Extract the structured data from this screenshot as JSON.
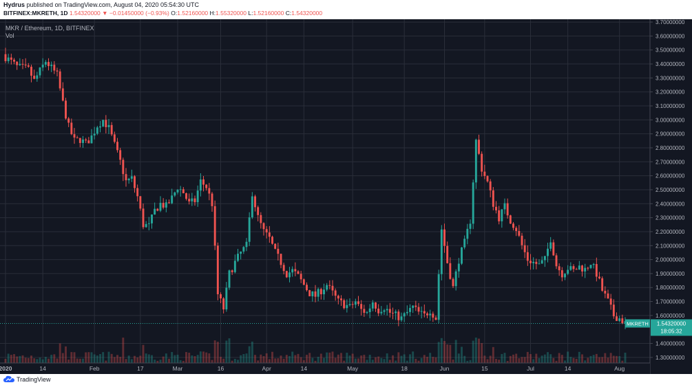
{
  "header": {
    "author": "Hydrus",
    "published_text": "published on TradingView.com, August 04, 2020 05:54:30 UTC",
    "symbol_line": "BITFINEX:MKRETH, 1D",
    "change": "1.54320000 ▼ −0.01450000 (−0.93%)",
    "o_label": "O:",
    "o_value": "1.52160000",
    "h_label": "H:",
    "h_value": "1.55320000",
    "l_label": "L:",
    "l_value": "1.52160000",
    "c_label": "C:",
    "c_value": "1.54320000"
  },
  "legend": {
    "title": "MKR / Ethereum, 1D, BITFINEX",
    "vol": "Vol"
  },
  "footer": {
    "logo_text": "TradingView"
  },
  "colors": {
    "up": "#26a69a",
    "down": "#ef5350",
    "bg": "#131722",
    "grid": "#2a2e39",
    "axis_text": "#b2b5be"
  },
  "chart_data": {
    "type": "candlestick",
    "symbol": "MKRETH",
    "interval": "1D",
    "exchange": "BITFINEX",
    "y_axis": {
      "labels": [
        "3.70000000",
        "3.60000000",
        "3.50000000",
        "3.40000000",
        "3.30000000",
        "3.20000000",
        "3.10000000",
        "3.00000000",
        "2.90000000",
        "2.80000000",
        "2.70000000",
        "2.60000000",
        "2.50000000",
        "2.40000000",
        "2.30000000",
        "2.20000000",
        "2.10000000",
        "2.00000000",
        "1.90000000",
        "1.80000000",
        "1.70000000",
        "1.60000000",
        "1.40000000",
        "1.30000000"
      ],
      "range": [
        1.26,
        3.72
      ]
    },
    "x_axis": {
      "labels": [
        "2020",
        "14",
        "Feb",
        "17",
        "Mar",
        "16",
        "Apr",
        "14",
        "May",
        "18",
        "Jun",
        "15",
        "Jul",
        "14",
        "Aug"
      ],
      "label_day_index": [
        0,
        13,
        31,
        47,
        60,
        75,
        91,
        104,
        121,
        139,
        153,
        167,
        183,
        196,
        214
      ],
      "start": "2020-01-01",
      "days": 217
    },
    "last_price": {
      "symbol": "MKRETH",
      "value": "1.54320000",
      "countdown": "18:05:32",
      "numeric": 1.5432
    },
    "closes": [
      [
        0,
        3.45
      ],
      [
        4,
        3.38
      ],
      [
        8,
        3.36
      ],
      [
        10,
        3.28
      ],
      [
        12,
        3.35
      ],
      [
        14,
        3.42
      ],
      [
        16,
        3.37
      ],
      [
        18,
        3.32
      ],
      [
        20,
        3.12
      ],
      [
        22,
        2.95
      ],
      [
        24,
        2.85
      ],
      [
        26,
        2.86
      ],
      [
        28,
        2.83
      ],
      [
        30,
        2.88
      ],
      [
        32,
        2.96
      ],
      [
        34,
        3.0
      ],
      [
        36,
        2.94
      ],
      [
        38,
        2.82
      ],
      [
        40,
        2.7
      ],
      [
        42,
        2.56
      ],
      [
        44,
        2.58
      ],
      [
        46,
        2.45
      ],
      [
        48,
        2.25
      ],
      [
        50,
        2.24
      ],
      [
        52,
        2.35
      ],
      [
        54,
        2.4
      ],
      [
        56,
        2.38
      ],
      [
        58,
        2.44
      ],
      [
        60,
        2.52
      ],
      [
        62,
        2.48
      ],
      [
        64,
        2.4
      ],
      [
        66,
        2.42
      ],
      [
        68,
        2.56
      ],
      [
        70,
        2.52
      ],
      [
        72,
        2.4
      ],
      [
        74,
        1.75
      ],
      [
        76,
        1.65
      ],
      [
        78,
        1.9
      ],
      [
        80,
        1.98
      ],
      [
        82,
        2.05
      ],
      [
        84,
        2.1
      ],
      [
        86,
        2.48
      ],
      [
        88,
        2.3
      ],
      [
        90,
        2.2
      ],
      [
        92,
        2.15
      ],
      [
        94,
        2.05
      ],
      [
        96,
        1.98
      ],
      [
        98,
        1.9
      ],
      [
        100,
        1.92
      ],
      [
        102,
        1.88
      ],
      [
        104,
        1.82
      ],
      [
        106,
        1.76
      ],
      [
        108,
        1.74
      ],
      [
        110,
        1.78
      ],
      [
        112,
        1.82
      ],
      [
        114,
        1.76
      ],
      [
        116,
        1.7
      ],
      [
        118,
        1.68
      ],
      [
        120,
        1.66
      ],
      [
        122,
        1.7
      ],
      [
        124,
        1.64
      ],
      [
        126,
        1.62
      ],
      [
        128,
        1.7
      ],
      [
        130,
        1.64
      ],
      [
        132,
        1.66
      ],
      [
        134,
        1.62
      ],
      [
        136,
        1.6
      ],
      [
        138,
        1.58
      ],
      [
        140,
        1.62
      ],
      [
        142,
        1.66
      ],
      [
        144,
        1.62
      ],
      [
        146,
        1.6
      ],
      [
        148,
        1.64
      ],
      [
        150,
        1.58
      ],
      [
        152,
        2.22
      ],
      [
        154,
        1.98
      ],
      [
        156,
        1.8
      ],
      [
        158,
        2.0
      ],
      [
        160,
        2.12
      ],
      [
        162,
        2.28
      ],
      [
        164,
        2.85
      ],
      [
        166,
        2.65
      ],
      [
        168,
        2.55
      ],
      [
        170,
        2.4
      ],
      [
        172,
        2.3
      ],
      [
        174,
        2.38
      ],
      [
        176,
        2.28
      ],
      [
        178,
        2.22
      ],
      [
        180,
        2.1
      ],
      [
        182,
        2.0
      ],
      [
        184,
        1.98
      ],
      [
        186,
        1.96
      ],
      [
        188,
        2.0
      ],
      [
        190,
        2.15
      ],
      [
        192,
        1.96
      ],
      [
        194,
        1.9
      ],
      [
        196,
        1.94
      ],
      [
        198,
        1.92
      ],
      [
        200,
        1.95
      ],
      [
        202,
        1.93
      ],
      [
        204,
        1.98
      ],
      [
        206,
        1.9
      ],
      [
        208,
        1.78
      ],
      [
        210,
        1.7
      ],
      [
        212,
        1.6
      ],
      [
        214,
        1.58
      ],
      [
        216,
        1.5432
      ]
    ]
  }
}
